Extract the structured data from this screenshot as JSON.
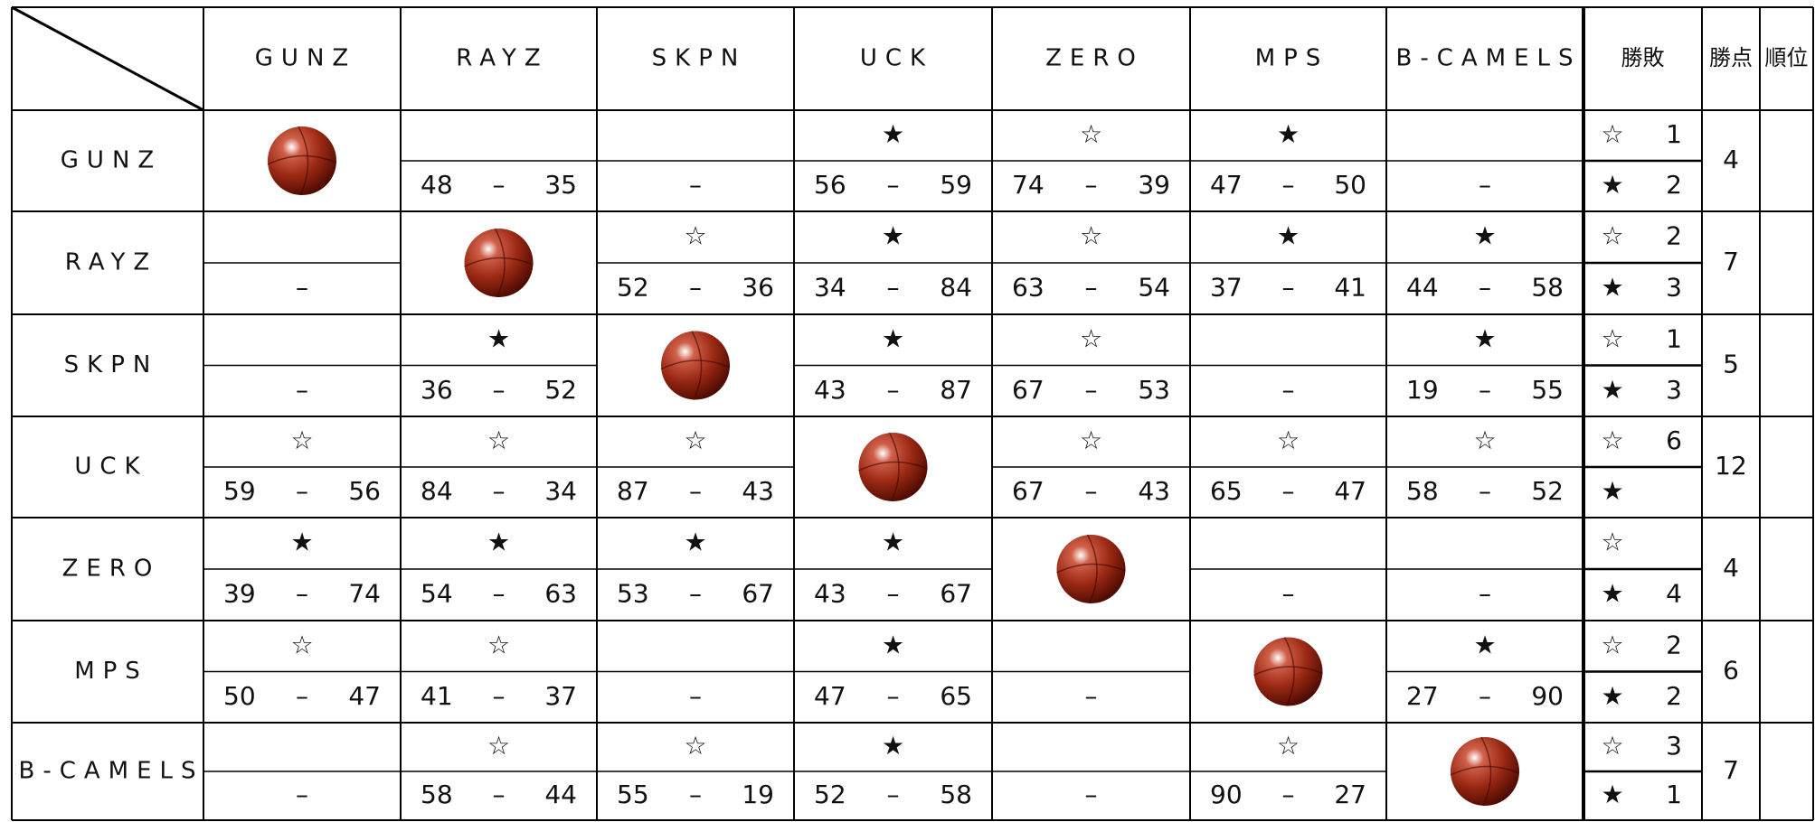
{
  "header": {
    "teams": [
      "GUNZ",
      "RAYZ",
      "SKPN",
      "UCK",
      "ZERO",
      "MPS",
      "B-CAMELS"
    ],
    "record": "勝敗",
    "points": "勝点",
    "rank": "順位"
  },
  "dash": "–",
  "win_mark": "☆",
  "loss_mark": "★",
  "rows": [
    {
      "team": "GUNZ",
      "games": [
        null,
        {
          "score": [
            48,
            35
          ]
        },
        {},
        {
          "mark": "★",
          "score": [
            56,
            59
          ]
        },
        {
          "mark": "☆",
          "score": [
            74,
            39
          ]
        },
        {
          "mark": "★",
          "score": [
            47,
            50
          ]
        },
        {}
      ],
      "record": {
        "wins": 1,
        "losses": 2
      },
      "points": 4
    },
    {
      "team": "RAYZ",
      "games": [
        {},
        null,
        {
          "mark": "☆",
          "score": [
            52,
            36
          ]
        },
        {
          "mark": "★",
          "score": [
            34,
            84
          ]
        },
        {
          "mark": "☆",
          "score": [
            63,
            54
          ]
        },
        {
          "mark": "★",
          "score": [
            37,
            41
          ]
        },
        {
          "mark": "★",
          "score": [
            44,
            58
          ]
        }
      ],
      "record": {
        "wins": 2,
        "losses": 3
      },
      "points": 7
    },
    {
      "team": "SKPN",
      "games": [
        {},
        {
          "mark": "★",
          "score": [
            36,
            52
          ]
        },
        null,
        {
          "mark": "★",
          "score": [
            43,
            87
          ]
        },
        {
          "mark": "☆",
          "score": [
            67,
            53
          ]
        },
        {},
        {
          "mark": "★",
          "score": [
            19,
            55
          ]
        }
      ],
      "record": {
        "wins": 1,
        "losses": 3
      },
      "points": 5
    },
    {
      "team": "UCK",
      "games": [
        {
          "mark": "☆",
          "score": [
            59,
            56
          ]
        },
        {
          "mark": "☆",
          "score": [
            84,
            34
          ]
        },
        {
          "mark": "☆",
          "score": [
            87,
            43
          ]
        },
        null,
        {
          "mark": "☆",
          "score": [
            67,
            43
          ]
        },
        {
          "mark": "☆",
          "score": [
            65,
            47
          ]
        },
        {
          "mark": "☆",
          "score": [
            58,
            52
          ]
        }
      ],
      "record": {
        "wins": 6
      },
      "points": 12
    },
    {
      "team": "ZERO",
      "games": [
        {
          "mark": "★",
          "score": [
            39,
            74
          ]
        },
        {
          "mark": "★",
          "score": [
            54,
            63
          ]
        },
        {
          "mark": "★",
          "score": [
            53,
            67
          ]
        },
        {
          "mark": "★",
          "score": [
            43,
            67
          ]
        },
        null,
        {},
        {}
      ],
      "record": {
        "losses": 4
      },
      "points": 4
    },
    {
      "team": "MPS",
      "games": [
        {
          "mark": "☆",
          "score": [
            50,
            47
          ]
        },
        {
          "mark": "☆",
          "score": [
            41,
            37
          ]
        },
        {},
        {
          "mark": "★",
          "score": [
            47,
            65
          ]
        },
        {},
        null,
        {
          "mark": "★",
          "score": [
            27,
            90
          ]
        }
      ],
      "record": {
        "wins": 2,
        "losses": 2
      },
      "points": 6
    },
    {
      "team": "B-CAMELS",
      "games": [
        {},
        {
          "mark": "☆",
          "score": [
            58,
            44
          ]
        },
        {
          "mark": "☆",
          "score": [
            55,
            19
          ]
        },
        {
          "mark": "★",
          "score": [
            52,
            58
          ]
        },
        {},
        {
          "mark": "☆",
          "score": [
            90,
            27
          ]
        },
        null
      ],
      "record": {
        "wins": 3,
        "losses": 1
      },
      "points": 7
    }
  ]
}
